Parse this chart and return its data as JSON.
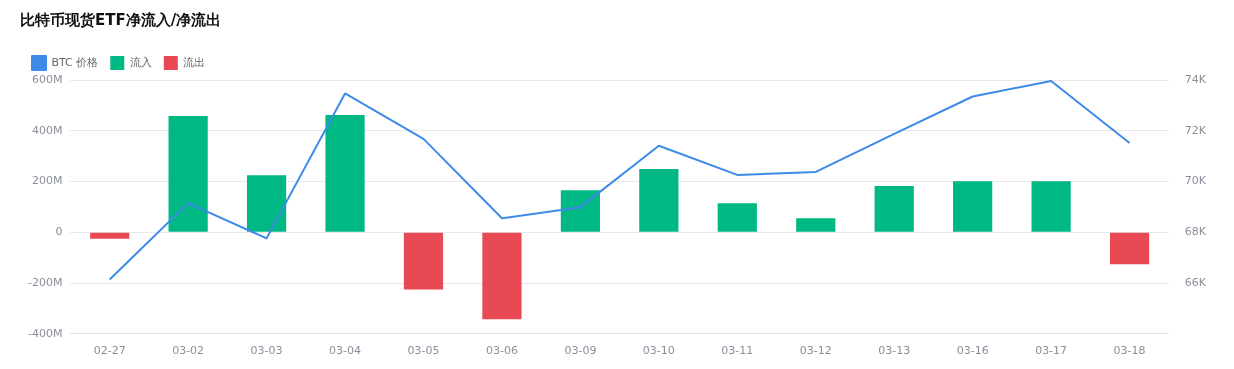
{
  "chart_data": {
    "type": "bar",
    "title": "比特币现货ETF净流入/净流出",
    "categories": [
      "02-27",
      "03-02",
      "03-03",
      "03-04",
      "03-05",
      "03-06",
      "03-09",
      "03-10",
      "03-11",
      "03-12",
      "03-13",
      "03-16",
      "03-17",
      "03-18"
    ],
    "stacked": true,
    "grid": "y",
    "legend": "top left",
    "marker": "none",
    "ylim": [
      -400,
      600
    ],
    "yticks": [
      {
        "value": -400,
        "label": "-400M"
      },
      {
        "value": -200,
        "label": "-200M"
      },
      0,
      {
        "value": 200,
        "label": "200M"
      },
      {
        "value": 400,
        "label": "400M"
      },
      {
        "value": 600,
        "label": "600M"
      }
    ],
    "y2lim": [
      64000,
      74000
    ],
    "y2ticks": [
      {
        "value": 66000,
        "label": "66K"
      },
      {
        "value": 68000,
        "label": "68K"
      },
      {
        "value": 70000,
        "label": "70K"
      },
      {
        "value": 72000,
        "label": "72K"
      },
      {
        "value": 74000,
        "label": "74K"
      }
    ],
    "series": [
      {
        "name": "流入",
        "color": "#00b883",
        "values": [
          null,
          458,
          225,
          462,
          null,
          null,
          166,
          249,
          114,
          55,
          182,
          201,
          201,
          null
        ]
      },
      {
        "name": "流出",
        "color": "#e84a55",
        "values": [
          -25,
          null,
          null,
          null,
          -225,
          -343,
          null,
          null,
          null,
          null,
          null,
          null,
          null,
          -126
        ]
      },
      {
        "name": "BTC 价格",
        "type": "line",
        "axis": "y2",
        "color": "#3d8ae8",
        "values": [
          66140,
          69150,
          67760,
          73470,
          71680,
          68550,
          68990,
          71410,
          70260,
          70380,
          71880,
          73350,
          73960,
          71520
        ]
      }
    ]
  }
}
